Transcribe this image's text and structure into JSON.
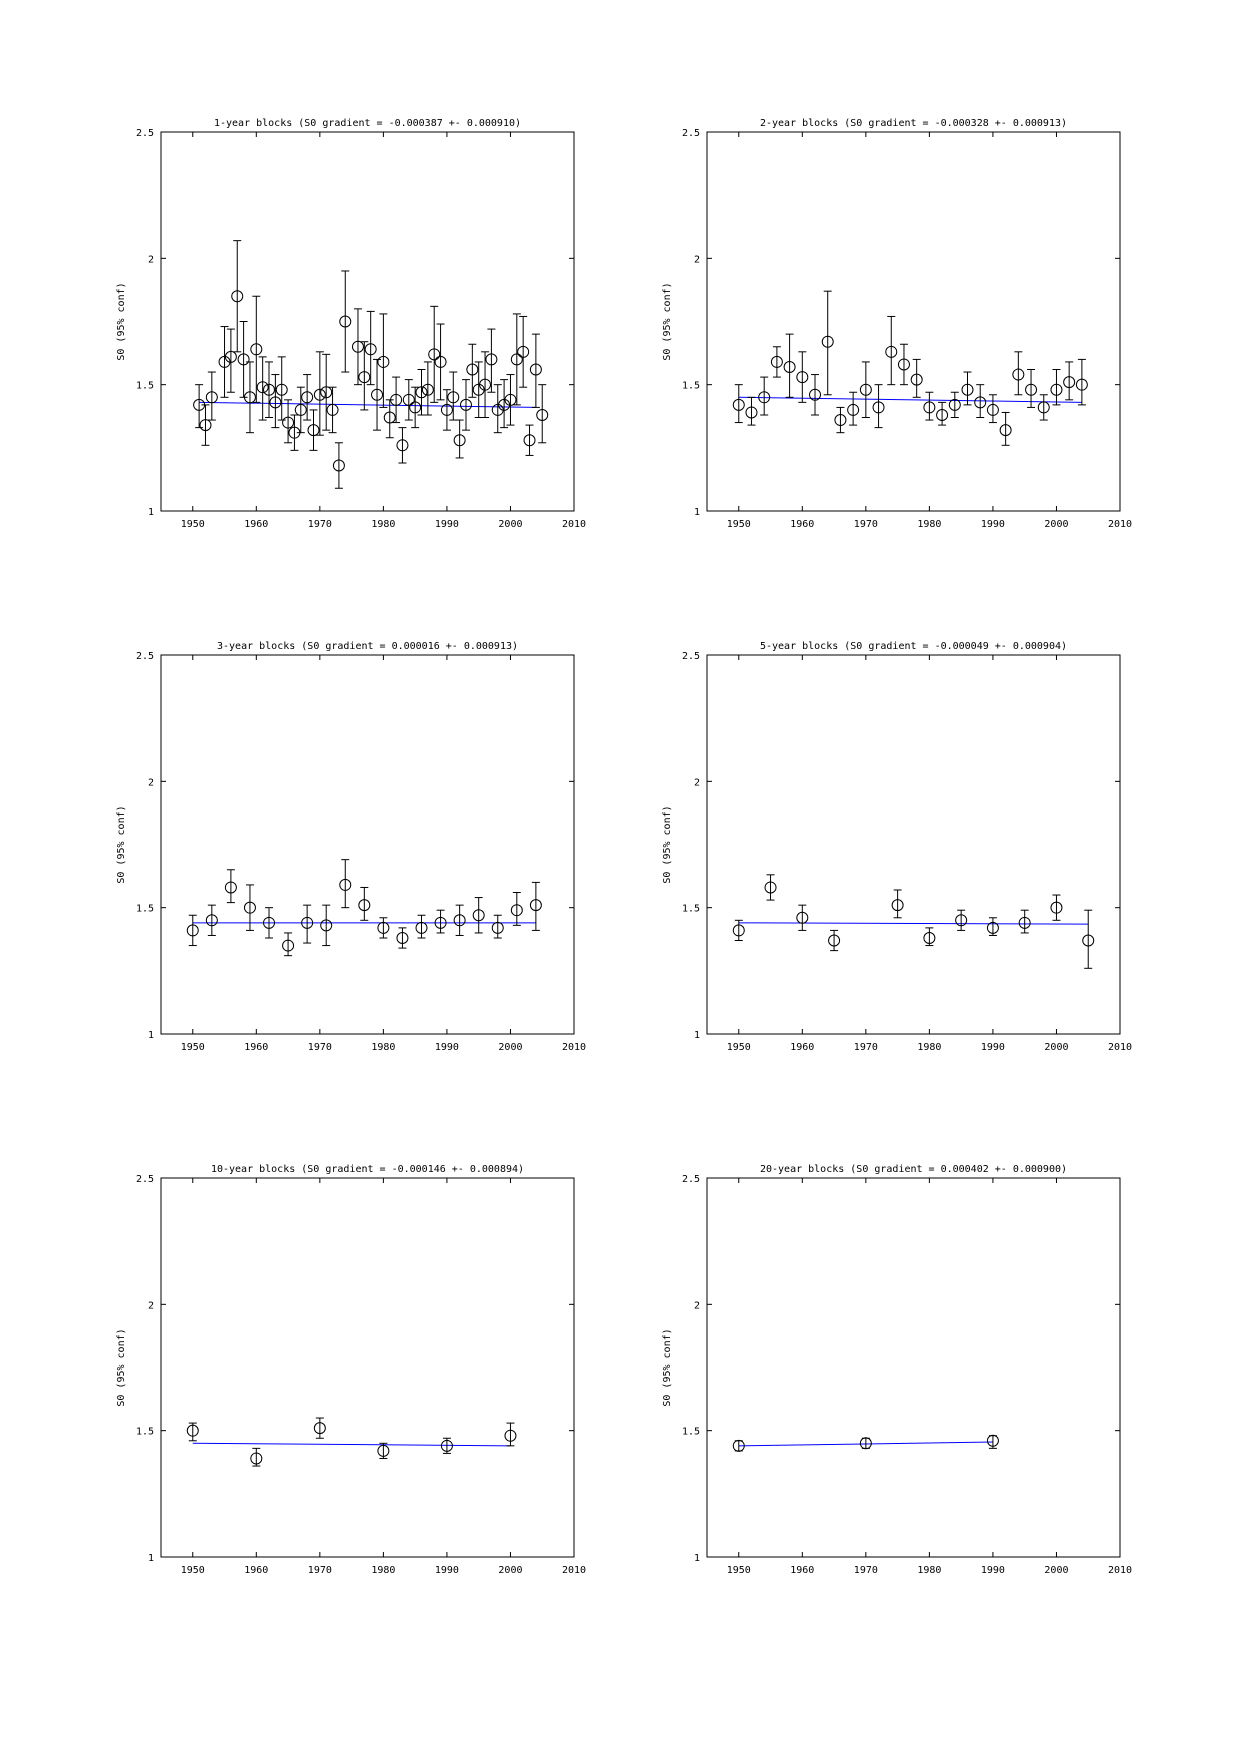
{
  "chart_data": [
    {
      "type": "scatter",
      "title": "1-year blocks (S0 gradient = -0.000387 +- 0.000910)",
      "xlabel": "",
      "ylabel": "S0 (95% conf)",
      "xlim": [
        1945,
        2010
      ],
      "ylim": [
        1,
        2.5
      ],
      "xticks": [
        1950,
        1960,
        1970,
        1980,
        1990,
        2000,
        2010
      ],
      "yticks": [
        "1",
        "1.5",
        "2",
        "2.5"
      ],
      "grid": false,
      "fit_line": {
        "color": "#0000ff",
        "x": [
          1951,
          2004
        ],
        "y": [
          1.43,
          1.41
        ]
      },
      "points": [
        {
          "x": 1951,
          "y": 1.42,
          "lo": 1.33,
          "hi": 1.5
        },
        {
          "x": 1952,
          "y": 1.34,
          "lo": 1.26,
          "hi": 1.42
        },
        {
          "x": 1953,
          "y": 1.45,
          "lo": 1.36,
          "hi": 1.55
        },
        {
          "x": 1955,
          "y": 1.59,
          "lo": 1.45,
          "hi": 1.73
        },
        {
          "x": 1956,
          "y": 1.61,
          "lo": 1.47,
          "hi": 1.72
        },
        {
          "x": 1957,
          "y": 1.85,
          "lo": 1.63,
          "hi": 2.07
        },
        {
          "x": 1958,
          "y": 1.6,
          "lo": 1.45,
          "hi": 1.75
        },
        {
          "x": 1959,
          "y": 1.45,
          "lo": 1.31,
          "hi": 1.59
        },
        {
          "x": 1960,
          "y": 1.64,
          "lo": 1.43,
          "hi": 1.85
        },
        {
          "x": 1961,
          "y": 1.49,
          "lo": 1.36,
          "hi": 1.61
        },
        {
          "x": 1962,
          "y": 1.48,
          "lo": 1.37,
          "hi": 1.59
        },
        {
          "x": 1963,
          "y": 1.43,
          "lo": 1.33,
          "hi": 1.54
        },
        {
          "x": 1964,
          "y": 1.48,
          "lo": 1.36,
          "hi": 1.61
        },
        {
          "x": 1965,
          "y": 1.35,
          "lo": 1.27,
          "hi": 1.44
        },
        {
          "x": 1966,
          "y": 1.31,
          "lo": 1.24,
          "hi": 1.38
        },
        {
          "x": 1967,
          "y": 1.4,
          "lo": 1.31,
          "hi": 1.49
        },
        {
          "x": 1968,
          "y": 1.45,
          "lo": 1.36,
          "hi": 1.54
        },
        {
          "x": 1969,
          "y": 1.32,
          "lo": 1.24,
          "hi": 1.4
        },
        {
          "x": 1970,
          "y": 1.46,
          "lo": 1.3,
          "hi": 1.63
        },
        {
          "x": 1971,
          "y": 1.47,
          "lo": 1.32,
          "hi": 1.62
        },
        {
          "x": 1972,
          "y": 1.4,
          "lo": 1.31,
          "hi": 1.49
        },
        {
          "x": 1973,
          "y": 1.18,
          "lo": 1.09,
          "hi": 1.27
        },
        {
          "x": 1974,
          "y": 1.75,
          "lo": 1.55,
          "hi": 1.95
        },
        {
          "x": 1976,
          "y": 1.65,
          "lo": 1.5,
          "hi": 1.8
        },
        {
          "x": 1977,
          "y": 1.53,
          "lo": 1.4,
          "hi": 1.67
        },
        {
          "x": 1978,
          "y": 1.64,
          "lo": 1.5,
          "hi": 1.79
        },
        {
          "x": 1979,
          "y": 1.46,
          "lo": 1.32,
          "hi": 1.6
        },
        {
          "x": 1980,
          "y": 1.59,
          "lo": 1.41,
          "hi": 1.78
        },
        {
          "x": 1981,
          "y": 1.37,
          "lo": 1.29,
          "hi": 1.44
        },
        {
          "x": 1982,
          "y": 1.44,
          "lo": 1.35,
          "hi": 1.53
        },
        {
          "x": 1983,
          "y": 1.26,
          "lo": 1.19,
          "hi": 1.33
        },
        {
          "x": 1984,
          "y": 1.44,
          "lo": 1.36,
          "hi": 1.52
        },
        {
          "x": 1985,
          "y": 1.41,
          "lo": 1.33,
          "hi": 1.49
        },
        {
          "x": 1986,
          "y": 1.47,
          "lo": 1.38,
          "hi": 1.56
        },
        {
          "x": 1987,
          "y": 1.48,
          "lo": 1.38,
          "hi": 1.59
        },
        {
          "x": 1988,
          "y": 1.62,
          "lo": 1.43,
          "hi": 1.81
        },
        {
          "x": 1989,
          "y": 1.59,
          "lo": 1.44,
          "hi": 1.74
        },
        {
          "x": 1990,
          "y": 1.4,
          "lo": 1.32,
          "hi": 1.48
        },
        {
          "x": 1991,
          "y": 1.45,
          "lo": 1.36,
          "hi": 1.55
        },
        {
          "x": 1992,
          "y": 1.28,
          "lo": 1.21,
          "hi": 1.36
        },
        {
          "x": 1993,
          "y": 1.42,
          "lo": 1.32,
          "hi": 1.52
        },
        {
          "x": 1994,
          "y": 1.56,
          "lo": 1.45,
          "hi": 1.66
        },
        {
          "x": 1995,
          "y": 1.48,
          "lo": 1.37,
          "hi": 1.59
        },
        {
          "x": 1996,
          "y": 1.5,
          "lo": 1.37,
          "hi": 1.63
        },
        {
          "x": 1997,
          "y": 1.6,
          "lo": 1.47,
          "hi": 1.72
        },
        {
          "x": 1998,
          "y": 1.4,
          "lo": 1.31,
          "hi": 1.5
        },
        {
          "x": 1999,
          "y": 1.42,
          "lo": 1.33,
          "hi": 1.52
        },
        {
          "x": 2000,
          "y": 1.44,
          "lo": 1.34,
          "hi": 1.54
        },
        {
          "x": 2001,
          "y": 1.6,
          "lo": 1.42,
          "hi": 1.78
        },
        {
          "x": 2002,
          "y": 1.63,
          "lo": 1.49,
          "hi": 1.77
        },
        {
          "x": 2003,
          "y": 1.28,
          "lo": 1.22,
          "hi": 1.34
        },
        {
          "x": 2004,
          "y": 1.56,
          "lo": 1.41,
          "hi": 1.7
        },
        {
          "x": 2005,
          "y": 1.38,
          "lo": 1.27,
          "hi": 1.5
        }
      ]
    },
    {
      "type": "scatter",
      "title": "2-year blocks (S0 gradient = -0.000328 +- 0.000913)",
      "xlabel": "",
      "ylabel": "S0 (95% conf)",
      "xlim": [
        1945,
        2010
      ],
      "ylim": [
        1,
        2.5
      ],
      "xticks": [
        1950,
        1960,
        1970,
        1980,
        1990,
        2000,
        2010
      ],
      "yticks": [
        "1",
        "1.5",
        "2",
        "2.5"
      ],
      "grid": false,
      "fit_line": {
        "color": "#0000ff",
        "x": [
          1950,
          2004
        ],
        "y": [
          1.45,
          1.43
        ]
      },
      "points": [
        {
          "x": 1950,
          "y": 1.42,
          "lo": 1.35,
          "hi": 1.5
        },
        {
          "x": 1952,
          "y": 1.39,
          "lo": 1.34,
          "hi": 1.45
        },
        {
          "x": 1954,
          "y": 1.45,
          "lo": 1.38,
          "hi": 1.53
        },
        {
          "x": 1956,
          "y": 1.59,
          "lo": 1.53,
          "hi": 1.65
        },
        {
          "x": 1958,
          "y": 1.57,
          "lo": 1.45,
          "hi": 1.7
        },
        {
          "x": 1960,
          "y": 1.53,
          "lo": 1.43,
          "hi": 1.63
        },
        {
          "x": 1962,
          "y": 1.46,
          "lo": 1.38,
          "hi": 1.54
        },
        {
          "x": 1964,
          "y": 1.67,
          "lo": 1.46,
          "hi": 1.87
        },
        {
          "x": 1966,
          "y": 1.36,
          "lo": 1.31,
          "hi": 1.41
        },
        {
          "x": 1968,
          "y": 1.4,
          "lo": 1.34,
          "hi": 1.47
        },
        {
          "x": 1970,
          "y": 1.48,
          "lo": 1.37,
          "hi": 1.59
        },
        {
          "x": 1972,
          "y": 1.41,
          "lo": 1.33,
          "hi": 1.5
        },
        {
          "x": 1974,
          "y": 1.63,
          "lo": 1.5,
          "hi": 1.77
        },
        {
          "x": 1976,
          "y": 1.58,
          "lo": 1.5,
          "hi": 1.66
        },
        {
          "x": 1978,
          "y": 1.52,
          "lo": 1.45,
          "hi": 1.6
        },
        {
          "x": 1980,
          "y": 1.41,
          "lo": 1.36,
          "hi": 1.47
        },
        {
          "x": 1982,
          "y": 1.38,
          "lo": 1.34,
          "hi": 1.43
        },
        {
          "x": 1984,
          "y": 1.42,
          "lo": 1.37,
          "hi": 1.47
        },
        {
          "x": 1986,
          "y": 1.48,
          "lo": 1.42,
          "hi": 1.55
        },
        {
          "x": 1988,
          "y": 1.43,
          "lo": 1.37,
          "hi": 1.5
        },
        {
          "x": 1990,
          "y": 1.4,
          "lo": 1.35,
          "hi": 1.46
        },
        {
          "x": 1992,
          "y": 1.32,
          "lo": 1.26,
          "hi": 1.39
        },
        {
          "x": 1994,
          "y": 1.54,
          "lo": 1.46,
          "hi": 1.63
        },
        {
          "x": 1996,
          "y": 1.48,
          "lo": 1.41,
          "hi": 1.56
        },
        {
          "x": 1998,
          "y": 1.41,
          "lo": 1.36,
          "hi": 1.46
        },
        {
          "x": 2000,
          "y": 1.48,
          "lo": 1.42,
          "hi": 1.56
        },
        {
          "x": 2002,
          "y": 1.51,
          "lo": 1.44,
          "hi": 1.59
        },
        {
          "x": 2004,
          "y": 1.5,
          "lo": 1.42,
          "hi": 1.6
        }
      ]
    },
    {
      "type": "scatter",
      "title": "3-year blocks (S0 gradient = 0.000016 +- 0.000913)",
      "xlabel": "",
      "ylabel": "S0 (95% conf)",
      "xlim": [
        1945,
        2010
      ],
      "ylim": [
        1,
        2.5
      ],
      "xticks": [
        1950,
        1960,
        1970,
        1980,
        1990,
        2000,
        2010
      ],
      "yticks": [
        "1",
        "1.5",
        "2",
        "2.5"
      ],
      "grid": false,
      "fit_line": {
        "color": "#0000ff",
        "x": [
          1950,
          2004
        ],
        "y": [
          1.44,
          1.44
        ]
      },
      "points": [
        {
          "x": 1950,
          "y": 1.41,
          "lo": 1.35,
          "hi": 1.47
        },
        {
          "x": 1953,
          "y": 1.45,
          "lo": 1.39,
          "hi": 1.51
        },
        {
          "x": 1956,
          "y": 1.58,
          "lo": 1.52,
          "hi": 1.65
        },
        {
          "x": 1959,
          "y": 1.5,
          "lo": 1.41,
          "hi": 1.59
        },
        {
          "x": 1962,
          "y": 1.44,
          "lo": 1.38,
          "hi": 1.5
        },
        {
          "x": 1965,
          "y": 1.35,
          "lo": 1.31,
          "hi": 1.4
        },
        {
          "x": 1968,
          "y": 1.44,
          "lo": 1.36,
          "hi": 1.51
        },
        {
          "x": 1971,
          "y": 1.43,
          "lo": 1.35,
          "hi": 1.51
        },
        {
          "x": 1974,
          "y": 1.59,
          "lo": 1.5,
          "hi": 1.69
        },
        {
          "x": 1977,
          "y": 1.51,
          "lo": 1.45,
          "hi": 1.58
        },
        {
          "x": 1980,
          "y": 1.42,
          "lo": 1.38,
          "hi": 1.46
        },
        {
          "x": 1983,
          "y": 1.38,
          "lo": 1.34,
          "hi": 1.42
        },
        {
          "x": 1986,
          "y": 1.42,
          "lo": 1.38,
          "hi": 1.47
        },
        {
          "x": 1989,
          "y": 1.44,
          "lo": 1.4,
          "hi": 1.49
        },
        {
          "x": 1992,
          "y": 1.45,
          "lo": 1.39,
          "hi": 1.51
        },
        {
          "x": 1995,
          "y": 1.47,
          "lo": 1.4,
          "hi": 1.54
        },
        {
          "x": 1998,
          "y": 1.42,
          "lo": 1.38,
          "hi": 1.47
        },
        {
          "x": 2001,
          "y": 1.49,
          "lo": 1.43,
          "hi": 1.56
        },
        {
          "x": 2004,
          "y": 1.51,
          "lo": 1.41,
          "hi": 1.6
        }
      ]
    },
    {
      "type": "scatter",
      "title": "5-year blocks (S0 gradient = -0.000049 +- 0.000904)",
      "xlabel": "",
      "ylabel": "S0 (95% conf)",
      "xlim": [
        1945,
        2010
      ],
      "ylim": [
        1,
        2.5
      ],
      "xticks": [
        1950,
        1960,
        1970,
        1980,
        1990,
        2000,
        2010
      ],
      "yticks": [
        "1",
        "1.5",
        "2",
        "2.5"
      ],
      "grid": false,
      "fit_line": {
        "color": "#0000ff",
        "x": [
          1950,
          2005
        ],
        "y": [
          1.44,
          1.435
        ]
      },
      "points": [
        {
          "x": 1950,
          "y": 1.41,
          "lo": 1.37,
          "hi": 1.45
        },
        {
          "x": 1955,
          "y": 1.58,
          "lo": 1.53,
          "hi": 1.63
        },
        {
          "x": 1960,
          "y": 1.46,
          "lo": 1.41,
          "hi": 1.51
        },
        {
          "x": 1965,
          "y": 1.37,
          "lo": 1.33,
          "hi": 1.41
        },
        {
          "x": 1975,
          "y": 1.51,
          "lo": 1.46,
          "hi": 1.57
        },
        {
          "x": 1980,
          "y": 1.38,
          "lo": 1.35,
          "hi": 1.42
        },
        {
          "x": 1985,
          "y": 1.45,
          "lo": 1.41,
          "hi": 1.49
        },
        {
          "x": 1990,
          "y": 1.42,
          "lo": 1.39,
          "hi": 1.46
        },
        {
          "x": 1995,
          "y": 1.44,
          "lo": 1.4,
          "hi": 1.49
        },
        {
          "x": 2000,
          "y": 1.5,
          "lo": 1.45,
          "hi": 1.55
        },
        {
          "x": 2005,
          "y": 1.37,
          "lo": 1.26,
          "hi": 1.49
        }
      ]
    },
    {
      "type": "scatter",
      "title": "10-year blocks (S0 gradient = -0.000146 +- 0.000894)",
      "xlabel": "",
      "ylabel": "S0 (95% conf)",
      "xlim": [
        1945,
        2010
      ],
      "ylim": [
        1,
        2.5
      ],
      "xticks": [
        1950,
        1960,
        1970,
        1980,
        1990,
        2000,
        2010
      ],
      "yticks": [
        "1",
        "1.5",
        "2",
        "2.5"
      ],
      "grid": false,
      "fit_line": {
        "color": "#0000ff",
        "x": [
          1950,
          2000
        ],
        "y": [
          1.45,
          1.44
        ]
      },
      "points": [
        {
          "x": 1950,
          "y": 1.5,
          "lo": 1.46,
          "hi": 1.53
        },
        {
          "x": 1960,
          "y": 1.39,
          "lo": 1.36,
          "hi": 1.43
        },
        {
          "x": 1970,
          "y": 1.51,
          "lo": 1.47,
          "hi": 1.55
        },
        {
          "x": 1980,
          "y": 1.42,
          "lo": 1.39,
          "hi": 1.45
        },
        {
          "x": 1990,
          "y": 1.44,
          "lo": 1.41,
          "hi": 1.47
        },
        {
          "x": 2000,
          "y": 1.48,
          "lo": 1.44,
          "hi": 1.53
        }
      ]
    },
    {
      "type": "scatter",
      "title": "20-year blocks (S0 gradient = 0.000402 +- 0.000900)",
      "xlabel": "",
      "ylabel": "S0 (95% conf)",
      "xlim": [
        1945,
        2010
      ],
      "ylim": [
        1,
        2.5
      ],
      "xticks": [
        1950,
        1960,
        1970,
        1980,
        1990,
        2000,
        2010
      ],
      "yticks": [
        "1",
        "1.5",
        "2",
        "2.5"
      ],
      "grid": false,
      "fit_line": {
        "color": "#0000ff",
        "x": [
          1950,
          1990
        ],
        "y": [
          1.44,
          1.455
        ]
      },
      "points": [
        {
          "x": 1950,
          "y": 1.44,
          "lo": 1.42,
          "hi": 1.46
        },
        {
          "x": 1970,
          "y": 1.45,
          "lo": 1.43,
          "hi": 1.47
        },
        {
          "x": 1990,
          "y": 1.46,
          "lo": 1.43,
          "hi": 1.48
        }
      ]
    }
  ]
}
